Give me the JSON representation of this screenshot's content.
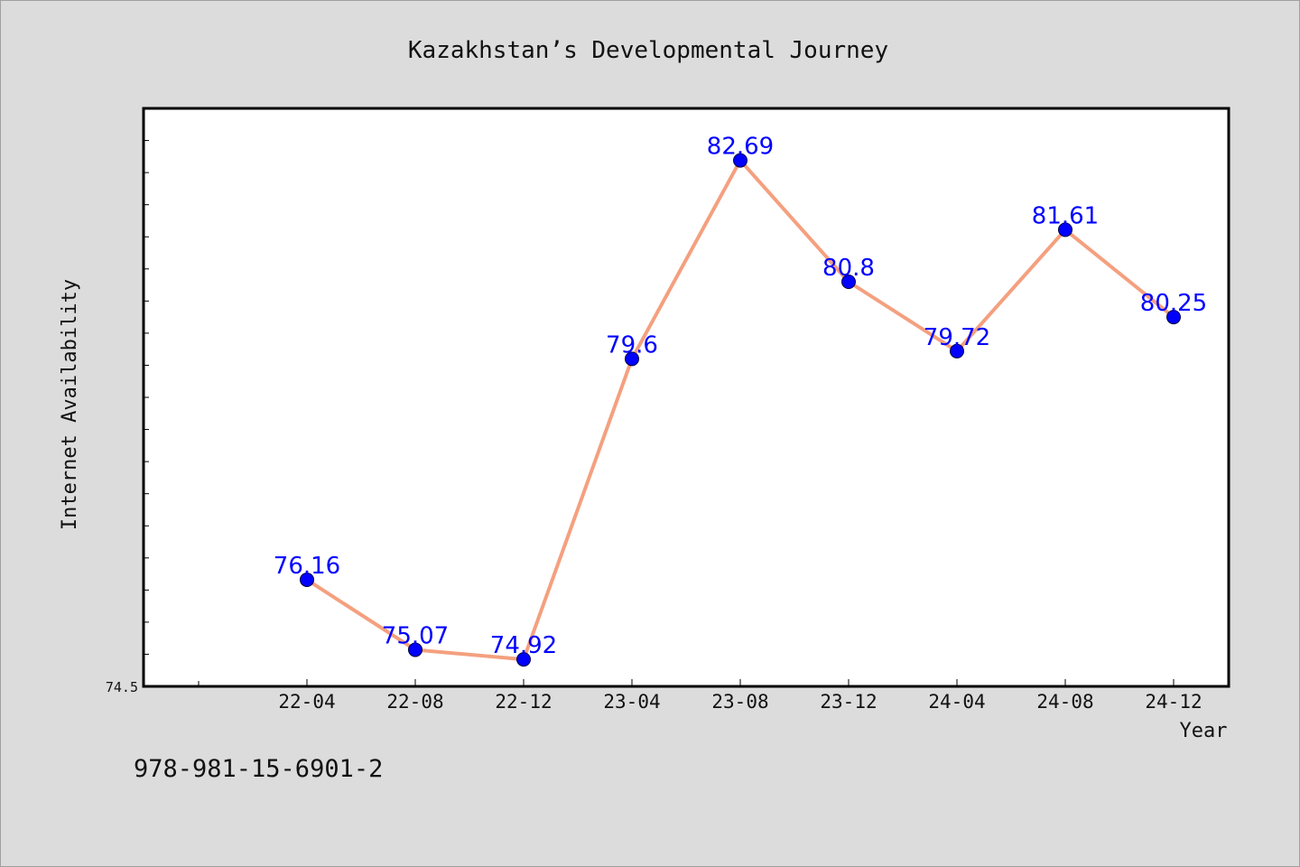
{
  "chart_data": {
    "type": "line",
    "title": "Kazakhstan’s Developmental Journey",
    "xlabel": "Year",
    "ylabel": "Internet Availability",
    "categories": [
      "22-04",
      "22-08",
      "22-12",
      "23-04",
      "23-08",
      "23-12",
      "24-04",
      "24-08",
      "24-12"
    ],
    "series": [
      {
        "values": [
          76.16,
          75.07,
          74.92,
          79.6,
          82.69,
          80.8,
          79.72,
          81.61,
          80.25
        ]
      }
    ],
    "data_labels": [
      "76.16",
      "75.07",
      "74.92",
      "79.6",
      "82.69",
      "80.8",
      "79.72",
      "81.61",
      "80.25"
    ],
    "ylim": [
      74.5,
      83.5
    ],
    "y_tick_labels": [
      "74.5"
    ],
    "grid": false,
    "colors": {
      "line": "#f4a07f",
      "marker": "#0000ff",
      "label": "#0000ff",
      "background": "#dcdcdc",
      "plot_background": "#ffffff"
    }
  },
  "footer": {
    "isbn": "978-981-15-6901-2"
  }
}
